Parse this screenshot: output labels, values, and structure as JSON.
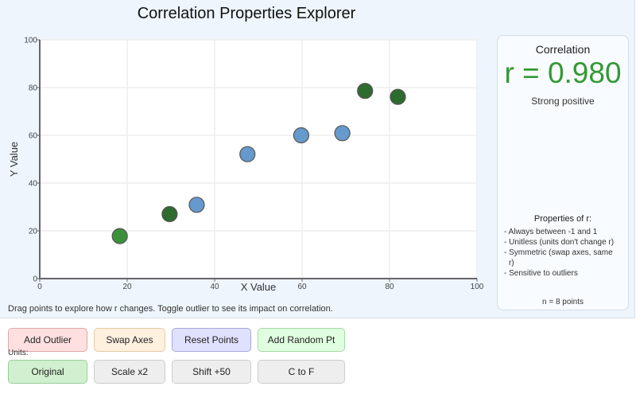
{
  "app": {
    "title": "Correlation Properties Explorer",
    "hint": "Drag points to explore how r changes. Toggle outlier to see its impact on correlation."
  },
  "chart_data": {
    "type": "scatter",
    "title": "Correlation Properties Explorer",
    "xlabel": "X Value",
    "ylabel": "Y Value",
    "xlim": [
      0,
      100
    ],
    "ylim": [
      0,
      100
    ],
    "x_ticks": [
      "0",
      "20",
      "40",
      "60",
      "80",
      "100"
    ],
    "y_ticks": [
      "0",
      "20",
      "40",
      "60",
      "80",
      "100"
    ],
    "grid": true,
    "points": [
      {
        "x": 18.3,
        "y": 17.8,
        "color": "#3a913a"
      },
      {
        "x": 29.7,
        "y": 27.0,
        "color": "#2e6b2e"
      },
      {
        "x": 35.9,
        "y": 30.9,
        "color": "#6699cc"
      },
      {
        "x": 47.5,
        "y": 52.1,
        "color": "#6699cc"
      },
      {
        "x": 59.8,
        "y": 60.0,
        "color": "#6699cc"
      },
      {
        "x": 69.2,
        "y": 60.9,
        "color": "#6699cc"
      },
      {
        "x": 74.4,
        "y": 78.6,
        "color": "#2e6b2e"
      },
      {
        "x": 81.9,
        "y": 76.1,
        "color": "#2e6b2e"
      }
    ]
  },
  "panel": {
    "correlation_title": "Correlation",
    "r_value": "r = 0.980",
    "r_color": "#339933",
    "strength": "Strong positive",
    "properties_title": "Properties of r:",
    "properties": [
      "- Always between -1 and 1",
      "- Unitless (units don't change r)",
      "- Symmetric (swap axes, same r)",
      "- Sensitive to outliers"
    ],
    "n_points": "n = 8 points"
  },
  "controls": {
    "row1": [
      {
        "label": "Add Outlier",
        "bg": "#ffe0e0",
        "border": "#e0a8a8"
      },
      {
        "label": "Swap Axes",
        "bg": "#fff0e0",
        "border": "#e5cba8"
      },
      {
        "label": "Reset Points",
        "bg": "#e0e0ff",
        "border": "#a8a8dc"
      },
      {
        "label": "Add Random Pt",
        "bg": "#e0ffe0",
        "border": "#a8d8a8"
      }
    ],
    "units_label": "Units:",
    "row2": [
      {
        "label": "Original",
        "bg": "#d0f0d0",
        "border": "#99cc99"
      },
      {
        "label": "Scale x2",
        "bg": "#eeeeee",
        "border": "#cccccc"
      },
      {
        "label": "Shift +50",
        "bg": "#eeeeee",
        "border": "#cccccc"
      },
      {
        "label": "C to F",
        "bg": "#eeeeee",
        "border": "#cccccc"
      }
    ]
  }
}
